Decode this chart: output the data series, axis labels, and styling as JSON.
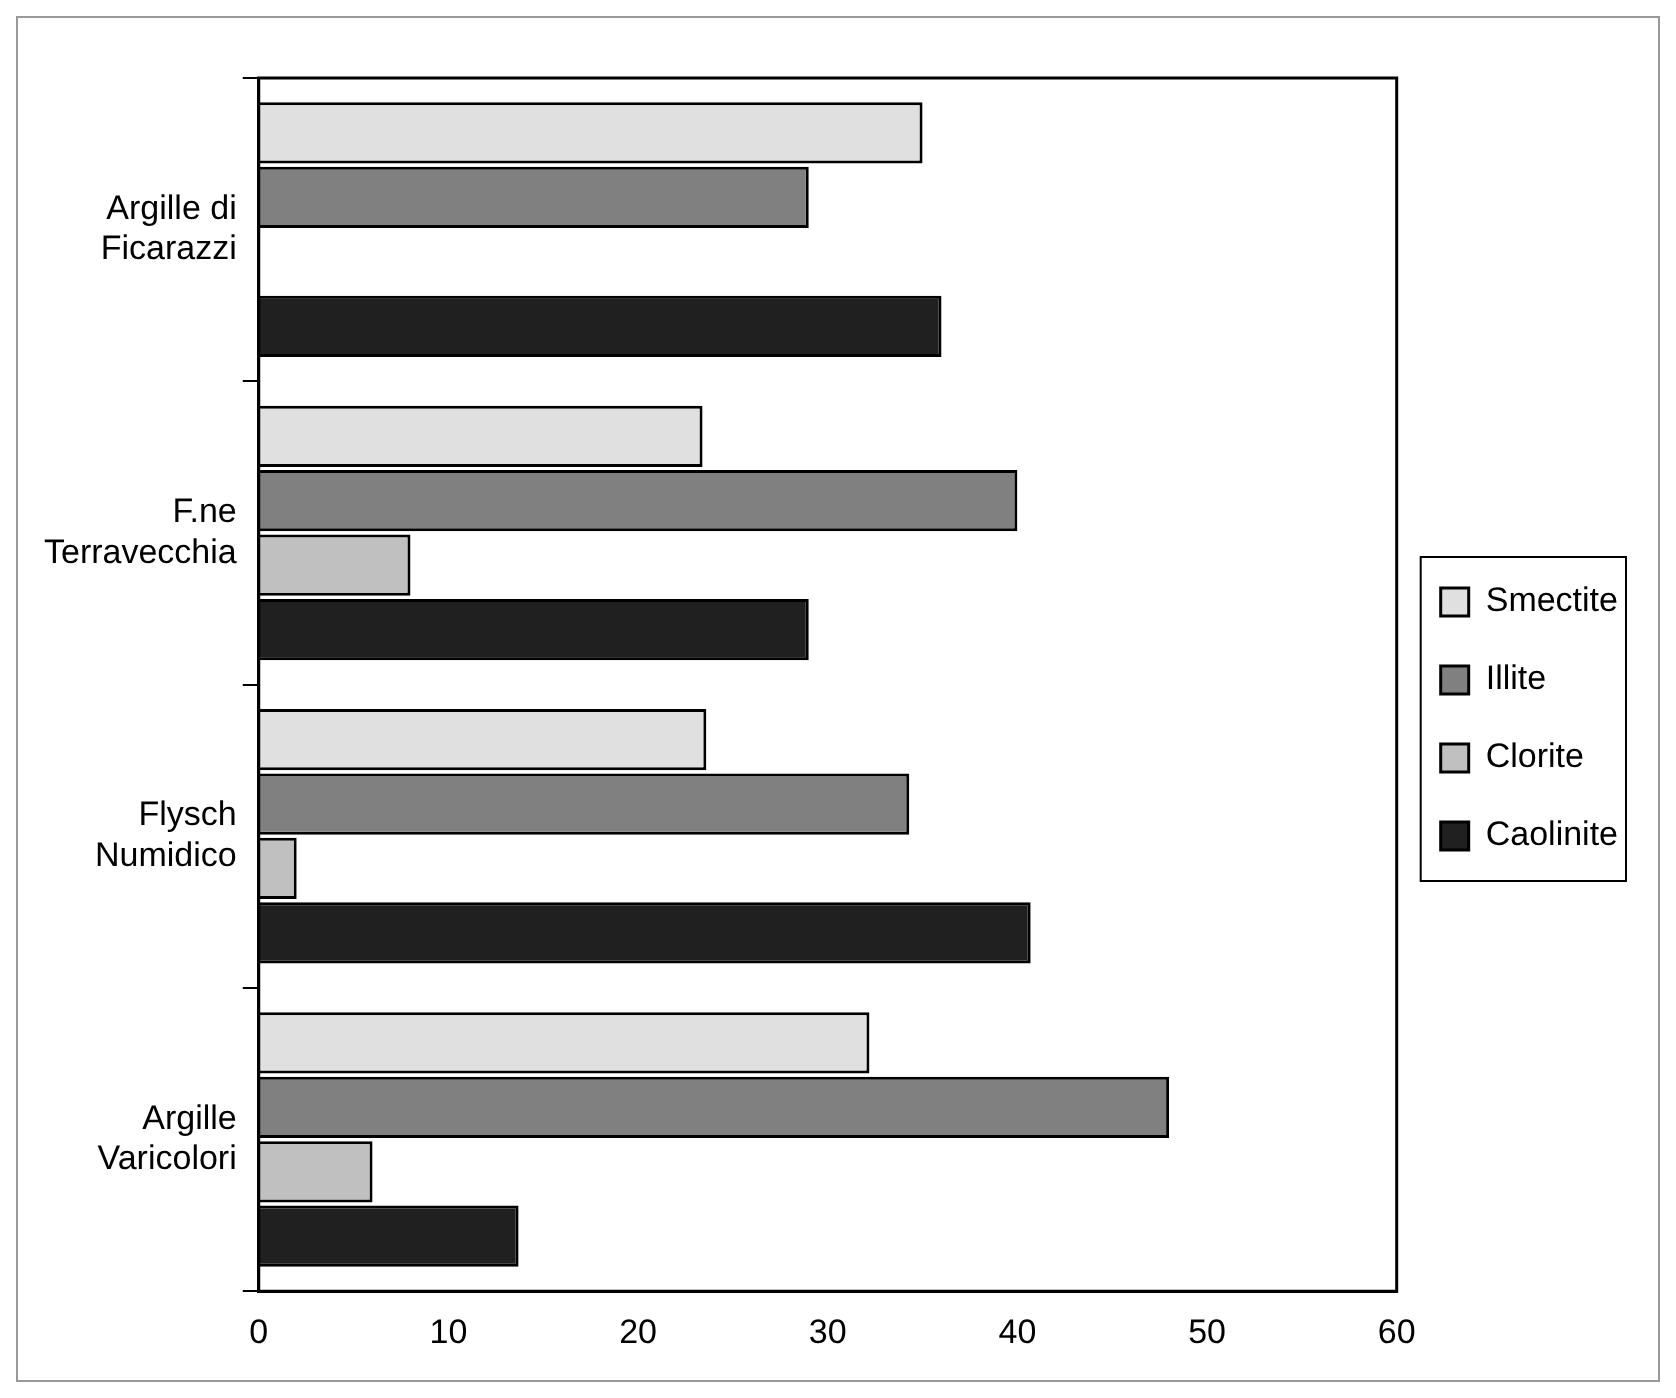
{
  "chart_data": {
    "type": "bar",
    "orientation": "horizontal",
    "categories": [
      "Argille di Ficarazzi",
      "F.ne Terravecchia",
      "Flysch Numidico",
      "Argille Varicolori"
    ],
    "series": [
      {
        "name": "Smectite",
        "color": "#e0e0e0",
        "values": [
          35,
          23.4,
          23.6,
          32.2
        ]
      },
      {
        "name": "Illite",
        "color": "#808080",
        "values": [
          29,
          40,
          34.3,
          48
        ]
      },
      {
        "name": "Clorite",
        "color": "#c0c0c0",
        "values": [
          0,
          8,
          2,
          6
        ]
      },
      {
        "name": "Caolinite",
        "color": "#202020",
        "values": [
          36,
          29,
          40.7,
          13.7
        ]
      }
    ],
    "xlim": [
      0,
      60
    ],
    "xticks": [
      0,
      10,
      20,
      30,
      40,
      50,
      60
    ],
    "grid": false,
    "legend": "right"
  }
}
